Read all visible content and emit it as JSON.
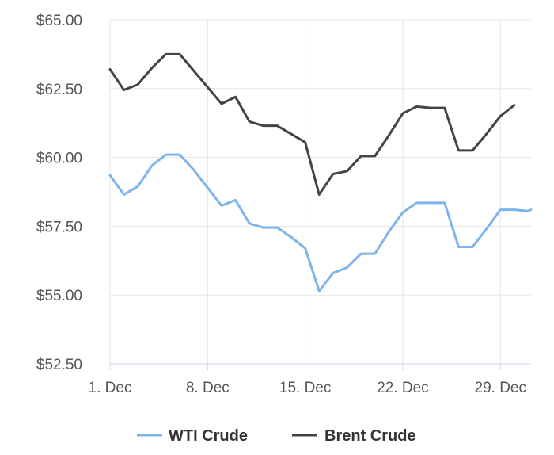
{
  "chart_data": {
    "type": "line",
    "title": "",
    "xlabel": "",
    "ylabel": "",
    "x_tick_labels": [
      "1. Dec",
      "8. Dec",
      "15. Dec",
      "22. Dec",
      "29. Dec"
    ],
    "x_tick_days": [
      1,
      8,
      15,
      22,
      29
    ],
    "y_tick_labels": [
      "$52.50",
      "$55.00",
      "$57.50",
      "$60.00",
      "$62.50",
      "$65.00"
    ],
    "y_tick_values": [
      52.5,
      55.0,
      57.5,
      60.0,
      62.5,
      65.0
    ],
    "xlim": [
      1,
      31.2
    ],
    "ylim": [
      52.5,
      65.0
    ],
    "grid": true,
    "legend_position": "bottom",
    "series": [
      {
        "name": "WTI Crude",
        "color": "#7cb5ec",
        "x": [
          1,
          2,
          3,
          4,
          5,
          6,
          7,
          8,
          9,
          10,
          11,
          12,
          13,
          14,
          15,
          16,
          17,
          18,
          19,
          20,
          21,
          22,
          23,
          24,
          25,
          26,
          27,
          28,
          29,
          30,
          31,
          31.2
        ],
        "y": [
          59.35,
          58.65,
          58.95,
          59.7,
          60.1,
          60.1,
          59.55,
          58.9,
          58.25,
          58.45,
          57.6,
          57.45,
          57.45,
          57.1,
          56.7,
          55.15,
          55.8,
          56.0,
          56.5,
          56.5,
          57.3,
          58.0,
          58.35,
          58.35,
          58.35,
          56.75,
          56.75,
          57.4,
          58.1,
          58.1,
          58.05,
          58.1
        ]
      },
      {
        "name": "Brent Crude",
        "color": "#434348",
        "x": [
          1,
          2,
          3,
          4,
          5,
          6,
          7,
          8,
          9,
          10,
          11,
          12,
          13,
          14,
          15,
          16,
          17,
          18,
          19,
          20,
          21,
          22,
          23,
          24,
          25,
          26,
          27,
          28,
          29,
          30
        ],
        "y": [
          63.2,
          62.45,
          62.65,
          63.25,
          63.75,
          63.75,
          63.15,
          62.55,
          61.95,
          62.2,
          61.3,
          61.15,
          61.15,
          60.85,
          60.55,
          58.65,
          59.4,
          59.5,
          60.05,
          60.05,
          60.8,
          61.6,
          61.85,
          61.8,
          61.8,
          60.25,
          60.25,
          60.85,
          61.5,
          61.9
        ]
      }
    ]
  }
}
